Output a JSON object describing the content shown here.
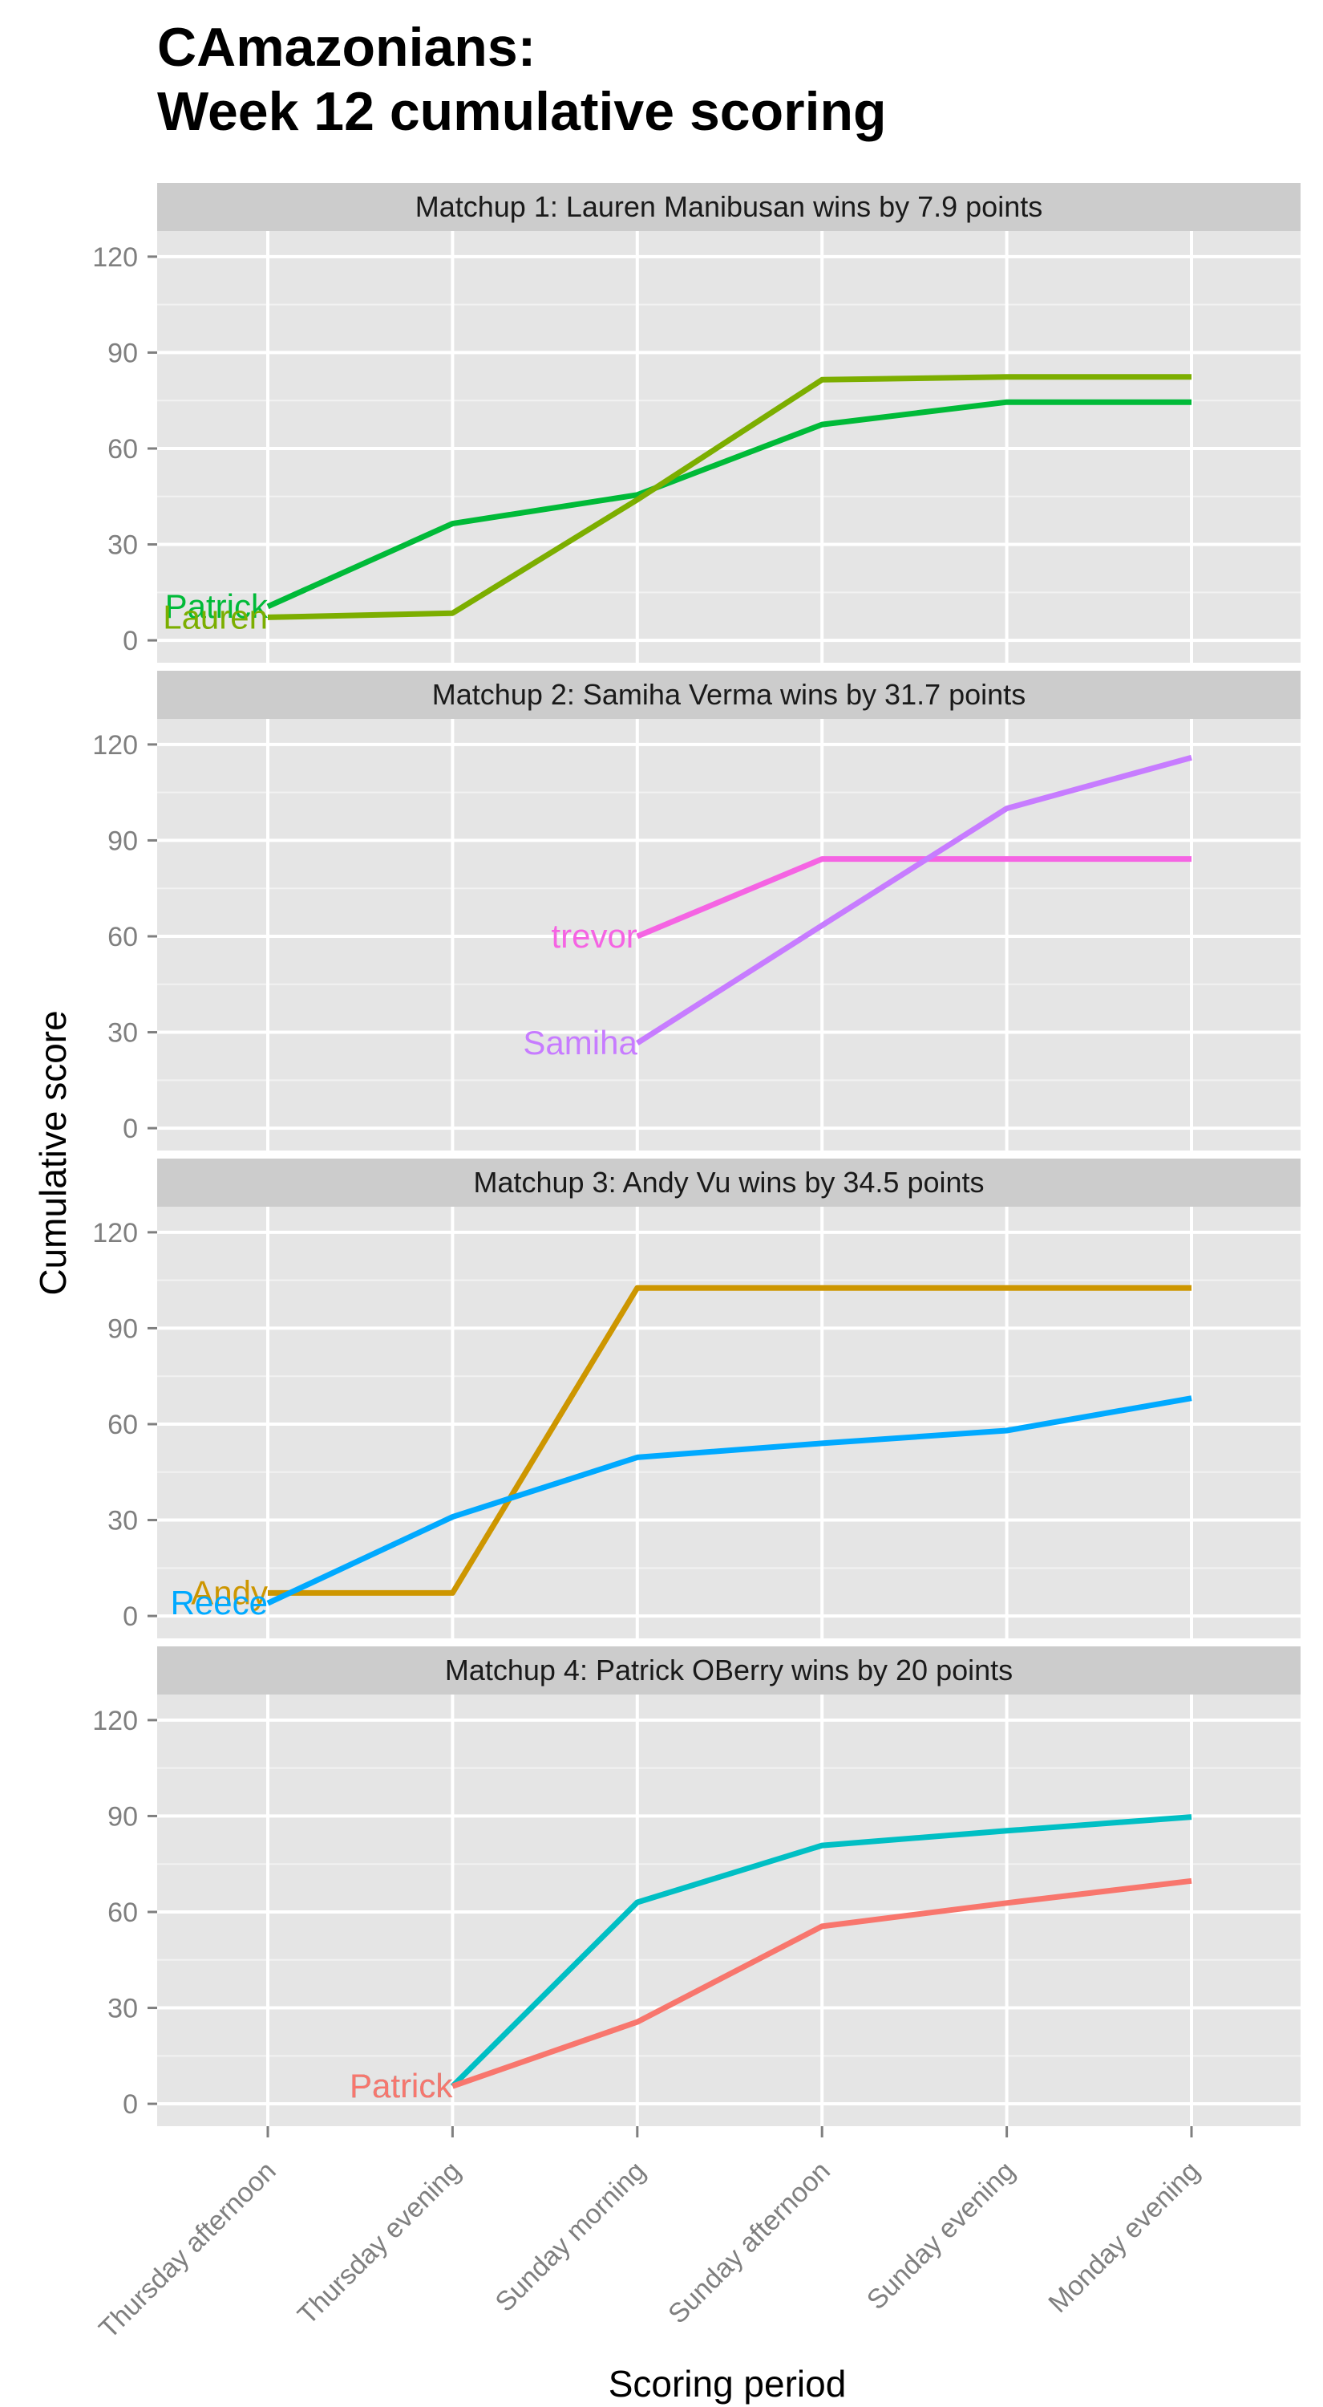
{
  "title_line1": "CAmazonians:",
  "title_line2": "Week 12 cumulative scoring",
  "chart_data": {
    "type": "line",
    "xlabel": "Scoring period",
    "ylabel": "Cumulative score",
    "x": [
      "Thursday afternoon",
      "Thursday evening",
      "Sunday morning",
      "Sunday afternoon",
      "Sunday evening",
      "Monday evening"
    ],
    "ylim": [
      -7,
      128
    ],
    "yticks": [
      0,
      30,
      60,
      90,
      120
    ],
    "grid": true,
    "legend": "none (series labelled at line start)",
    "facets": [
      {
        "title": "Matchup 1: Lauren Manibusan wins by 7.9 points",
        "series": [
          {
            "name": "Patrick",
            "color": "#00BA38",
            "values": [
              10.6,
              36.5,
              45.5,
              67.5,
              74.5,
              74.5
            ]
          },
          {
            "name": "Lauren",
            "color": "#7CAE00",
            "values": [
              7.2,
              8.5,
              44,
              81.5,
              82.4,
              82.4
            ]
          }
        ]
      },
      {
        "title": "Matchup 2: Samiha Verma wins by 31.7 points",
        "series": [
          {
            "name": "trevor",
            "color": "#F564E3",
            "values": [
              null,
              null,
              60,
              84.2,
              84.2,
              84.2
            ]
          },
          {
            "name": "Samiha",
            "color": "#C77CFF",
            "values": [
              null,
              null,
              26.6,
              63.4,
              100,
              115.9
            ]
          }
        ]
      },
      {
        "title": "Matchup 3: Andy Vu wins by 34.5 points",
        "series": [
          {
            "name": "Andy",
            "color": "#CD9600",
            "values": [
              7.2,
              7.2,
              102.6,
              102.6,
              102.6,
              102.6
            ]
          },
          {
            "name": "Reece",
            "color": "#00A9FF",
            "values": [
              4,
              31,
              49.6,
              54,
              58,
              68.1
            ]
          }
        ]
      },
      {
        "title": "Matchup 4: Patrick OBerry wins by 20 points",
        "series": [
          {
            "name": "Patrick",
            "color": "#00BFC4",
            "values": [
              null,
              5.5,
              63,
              80.8,
              85.4,
              89.7
            ]
          },
          {
            "name": "Patrick",
            "color": "#F8766D",
            "values": [
              null,
              5.5,
              25.6,
              55.5,
              62.8,
              69.7
            ]
          }
        ]
      }
    ]
  }
}
